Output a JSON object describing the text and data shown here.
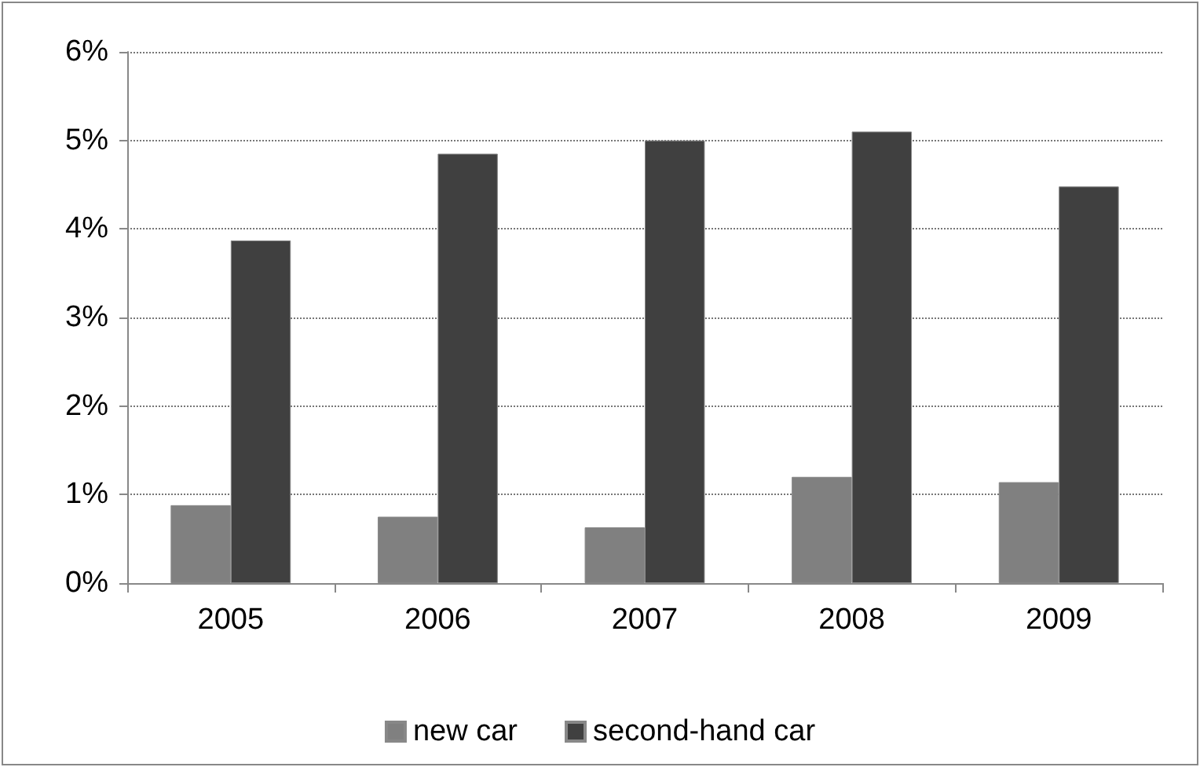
{
  "chart_data": {
    "type": "bar",
    "categories": [
      "2005",
      "2006",
      "2007",
      "2008",
      "2009"
    ],
    "series": [
      {
        "name": "new car",
        "color": "#808080",
        "values": [
          0.88,
          0.75,
          0.63,
          1.2,
          1.14
        ]
      },
      {
        "name": "second-hand car",
        "color": "#404040",
        "values": [
          3.87,
          4.85,
          5.0,
          5.1,
          4.48
        ]
      }
    ],
    "ylim": [
      0,
      6
    ],
    "yticks": [
      {
        "value": 0,
        "label": "0%"
      },
      {
        "value": 1,
        "label": "1%"
      },
      {
        "value": 2,
        "label": "2%"
      },
      {
        "value": 3,
        "label": "3%"
      },
      {
        "value": 4,
        "label": "4%"
      },
      {
        "value": 5,
        "label": "5%"
      },
      {
        "value": 6,
        "label": "6%"
      }
    ],
    "grid": "y",
    "line_style": "dotted",
    "legend": "bottom"
  }
}
